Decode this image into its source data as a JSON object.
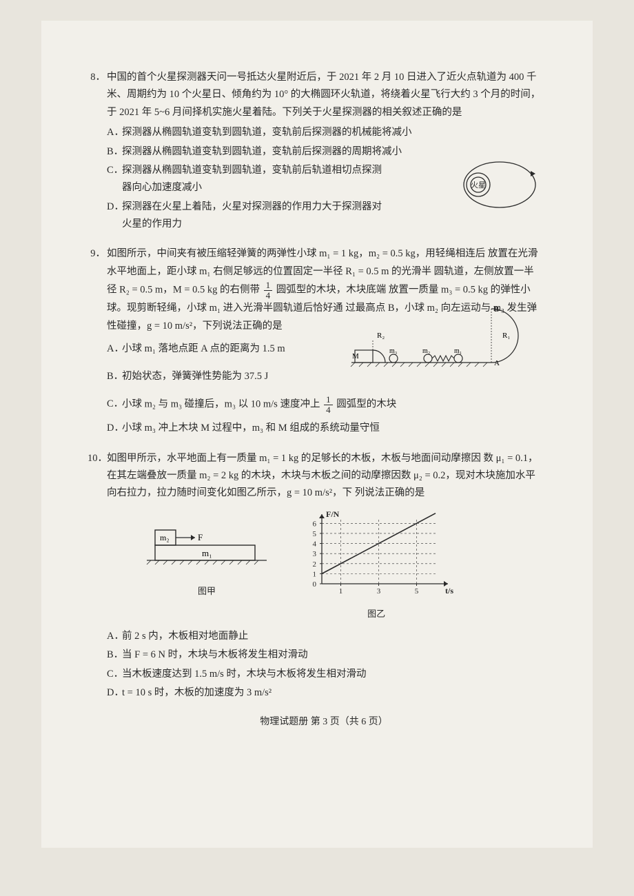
{
  "q8": {
    "num": "8．",
    "text1": "中国的首个火星探测器天问一号抵达火星附近后，于 2021 年 2 月 10 日进入了近火点轨道为 400 千米、周期约为 10 个火星日、倾角约为 10° 的大椭圆环火轨道，将绕着火星飞行大约 3 个月的时间，于 2021 年 5~6 月间择机实施火星着陆。下列关于火星探测器的相关叙述正确的是",
    "A": "探测器从椭圆轨道变轨到圆轨道，变轨前后探测器的机械能将减小",
    "B": "探测器从椭圆轨道变轨到圆轨道，变轨前后探测器的周期将减小",
    "C1": "探测器从椭圆轨道变轨到圆轨道，变轨前后轨道相切点探测",
    "C2": "器向心加速度减小",
    "D1": "探测器在火星上着陆，火星对探测器的作用力大于探测器对",
    "D2": "火星的作用力",
    "orbit_label": "火星"
  },
  "q9": {
    "num": "9．",
    "text1_a": "如图所示，中间夹有被压缩轻弹簧的两弹性小球 ",
    "m1": "m₁ = 1 kg，",
    "m2": "m₂ = 0.5 kg，",
    "text1_b": "用轻绳相连后",
    "text2_a": "放置在光滑水平地面上，距小球 ",
    "text2_b": "m₁ 右侧足够远的位置固定一半径 ",
    "r1": "R₁ = 0.5 m ",
    "text2_c": "的光滑半",
    "text3_a": "圆轨道，左侧放置一半径 ",
    "r2": "R₂ = 0.5 m，",
    "mm": "M = 0.5 kg ",
    "text3_b": "的右侧带 ",
    "text3_c": " 圆弧型的木块，木块底端",
    "text4_a": "放置一质量 ",
    "m3": "m₃ = 0.5 kg ",
    "text4_b": "的弹性小球。现剪断轻绳，小球 m₁ 进入光滑半圆轨道后恰好通",
    "text5_a": "过最高点 B，小球 m₂ 向左运动与 m₃ 发生弹性碰撞，",
    "gval": "g = 10 m/s²，",
    "text5_b": "下列说法正确的是",
    "A": "小球 m₁ 落地点距 A 点的距离为 1.5 m",
    "B": "初始状态，弹簧弹性势能为 37.5 J",
    "C_a": "小球 m₂ 与 m₃ 碰撞后，m₃ 以 10 m/s 速度冲上 ",
    "C_b": " 圆弧型的木块",
    "D": "小球 m₃ 冲上木块 M 过程中，m₃ 和 M 组成的系统动量守恒",
    "frac_num": "1",
    "frac_den": "4",
    "fig_R2": "R₂",
    "fig_R1": "R₁",
    "fig_M": "M",
    "fig_m3": "m₃",
    "fig_m2": "m₂",
    "fig_m1": "m₁",
    "fig_A": "A",
    "fig_B": "B"
  },
  "q10": {
    "num": "10．",
    "text1_a": "如图甲所示，水平地面上有一质量 ",
    "m1v": "m₁ = 1 kg ",
    "text1_b": "的足够长的木板，木板与地面间动摩擦因",
    "text2_a": "数 ",
    "mu1": "μ₁ = 0.1，",
    "text2_b": "在其左端叠放一质量 ",
    "m2v": "m₂ = 2 kg ",
    "text2_c": "的木块，木块与木板之间的动摩擦因数",
    "text3_a": "",
    "mu2": "μ₂ = 0.2，",
    "text3_b": "现对木块施加水平向右拉力，拉力随时间变化如图乙所示，",
    "gval": "g = 10 m/s²，",
    "text3_c": "下",
    "text4": "列说法正确的是",
    "A": "前 2 s 内，木板相对地面静止",
    "B": "当 F = 6 N 时，木块与木板将发生相对滑动",
    "C": "当木板速度达到 1.5 m/s 时，木块与木板将发生相对滑动",
    "D": "t = 10 s 时，木板的加速度为 3 m/s²",
    "fig_m2": "m₂",
    "fig_m1": "m₁",
    "fig_F": "F",
    "caption1": "图甲",
    "caption2": "图乙",
    "graph": {
      "ylabel": "F/N",
      "xlabel": "t/s",
      "yticks": [
        "0",
        "1",
        "2",
        "3",
        "4",
        "5",
        "6"
      ],
      "xticks": [
        "1",
        "3",
        "5"
      ],
      "x_range": 6,
      "y_range": 6.5,
      "intercept": 1,
      "slope": 1,
      "line_color": "#2a2a2a",
      "bg": "#f2f0ea"
    }
  },
  "footer": "物理试题册  第 3 页（共 6 页）"
}
